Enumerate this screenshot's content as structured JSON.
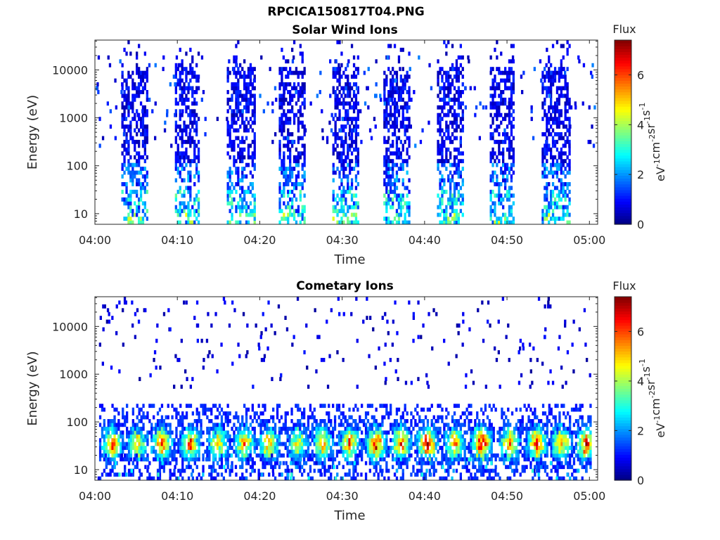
{
  "figure": {
    "title": "RPCICA150817T04.PNG"
  },
  "colors": {
    "colormap": "jet",
    "axis": "#262626",
    "background": "#ffffff"
  },
  "chart_data": [
    {
      "type": "heatmap",
      "title": "Solar Wind Ions",
      "xlabel": "Time",
      "ylabel": "Energy (eV)",
      "x_ticks": [
        "04:00",
        "04:10",
        "04:20",
        "04:30",
        "04:40",
        "04:50",
        "05:00"
      ],
      "y_ticks": [
        "10",
        "100",
        "1000",
        "10000"
      ],
      "y_scale": "log",
      "xlim_minutes": [
        0,
        61
      ],
      "ylim": [
        6,
        42000
      ],
      "colorbar": {
        "label": "Flux",
        "unit": "eV-1 cm-2 sr-1 s-1",
        "ticks": [
          "0",
          "2",
          "4",
          "6"
        ],
        "range": [
          0,
          7.4
        ]
      },
      "bursts": [
        {
          "start_min": 3.2,
          "end_min": 6.3
        },
        {
          "start_min": 9.7,
          "end_min": 12.5
        },
        {
          "start_min": 16.0,
          "end_min": 19.4
        },
        {
          "start_min": 22.3,
          "end_min": 25.5
        },
        {
          "start_min": 28.8,
          "end_min": 31.8
        },
        {
          "start_min": 35.0,
          "end_min": 38.2
        },
        {
          "start_min": 41.5,
          "end_min": 44.5
        },
        {
          "start_min": 47.9,
          "end_min": 50.7
        },
        {
          "start_min": 54.2,
          "end_min": 57.5
        }
      ]
    },
    {
      "type": "heatmap",
      "title": "Cometary Ions",
      "xlabel": "Time",
      "ylabel": "Energy (eV)",
      "x_ticks": [
        "04:00",
        "04:10",
        "04:20",
        "04:30",
        "04:40",
        "04:50",
        "05:00"
      ],
      "y_ticks": [
        "10",
        "100",
        "1000",
        "10000"
      ],
      "y_scale": "log",
      "xlim_minutes": [
        0,
        61
      ],
      "ylim": [
        6,
        42000
      ],
      "colorbar": {
        "label": "Flux",
        "unit": "eV-1 cm-2 sr-1 s-1",
        "ticks": [
          "0",
          "2",
          "4",
          "6"
        ],
        "range": [
          0,
          7.4
        ]
      },
      "bursts": [
        {
          "center_min": 2.0,
          "peak": 5.8
        },
        {
          "center_min": 5.0,
          "peak": 4.8
        },
        {
          "center_min": 8.0,
          "peak": 6.0
        },
        {
          "center_min": 11.5,
          "peak": 5.6
        },
        {
          "center_min": 14.8,
          "peak": 5.0
        },
        {
          "center_min": 18.0,
          "peak": 5.6
        },
        {
          "center_min": 21.0,
          "peak": 5.2
        },
        {
          "center_min": 24.5,
          "peak": 4.6
        },
        {
          "center_min": 27.5,
          "peak": 5.4
        },
        {
          "center_min": 30.8,
          "peak": 5.6
        },
        {
          "center_min": 34.0,
          "peak": 6.2
        },
        {
          "center_min": 37.0,
          "peak": 5.8
        },
        {
          "center_min": 40.2,
          "peak": 7.0
        },
        {
          "center_min": 43.5,
          "peak": 5.6
        },
        {
          "center_min": 46.8,
          "peak": 7.0
        },
        {
          "center_min": 50.2,
          "peak": 5.8
        },
        {
          "center_min": 53.5,
          "peak": 6.4
        },
        {
          "center_min": 56.5,
          "peak": 5.4
        },
        {
          "center_min": 59.5,
          "peak": 6.2
        }
      ]
    }
  ]
}
